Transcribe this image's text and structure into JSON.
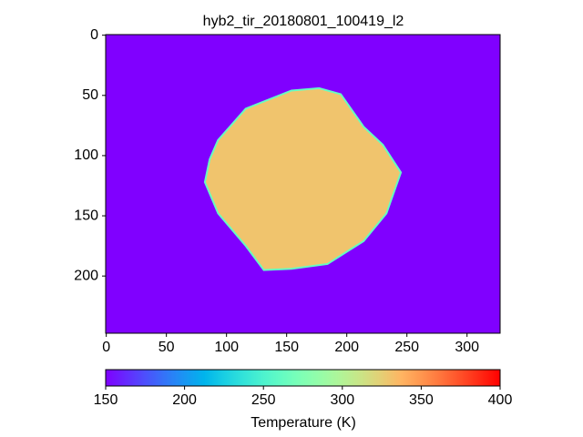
{
  "chart_data": {
    "type": "image",
    "title": "hyb2_tir_20180801_100419_l2",
    "xlim": [
      -0.5,
      327.5
    ],
    "ylim": [
      247.5,
      -0.5
    ],
    "xticks": [
      0,
      50,
      100,
      150,
      200,
      250,
      300
    ],
    "yticks": [
      0,
      50,
      100,
      150,
      200
    ],
    "colormap": "rainbow",
    "image": {
      "background": 150,
      "object_value": 330,
      "object_outline": {
        "x": [
          93,
          116,
          154,
          177,
          195,
          214,
          230,
          245,
          233,
          214,
          184,
          154,
          131,
          116,
          93,
          82,
          86
        ],
        "y": [
          87,
          61,
          46,
          44,
          49,
          76,
          91,
          114,
          148,
          171,
          190,
          194,
          195,
          175,
          148,
          122,
          103
        ]
      }
    },
    "colorbar": {
      "label": "Temperature (K)",
      "lim": [
        150,
        400
      ],
      "ticks": [
        150,
        200,
        250,
        300,
        350,
        400
      ]
    }
  }
}
